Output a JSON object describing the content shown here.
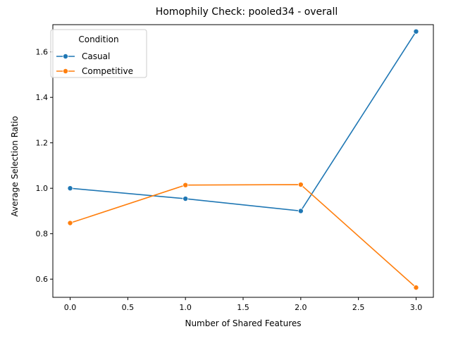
{
  "chart_data": {
    "type": "line",
    "title": "Homophily Check: pooled34 - overall",
    "xlabel": "Number of Shared Features",
    "ylabel": "Average Selection Ratio",
    "xlim": [
      -0.15,
      3.15
    ],
    "ylim": [
      0.52,
      1.72
    ],
    "xticks": [
      0.0,
      0.5,
      1.0,
      1.5,
      2.0,
      2.5,
      3.0
    ],
    "xtick_labels": [
      "0.0",
      "0.5",
      "1.0",
      "1.5",
      "2.0",
      "2.5",
      "3.0"
    ],
    "yticks": [
      0.6,
      0.8,
      1.0,
      1.2,
      1.4,
      1.6
    ],
    "ytick_labels": [
      "0.6",
      "0.8",
      "1.0",
      "1.2",
      "1.4",
      "1.6"
    ],
    "grid": false,
    "legend": {
      "title": "Condition",
      "placement": "top-left"
    },
    "x": [
      0,
      1,
      2,
      3
    ],
    "series": [
      {
        "name": "Casual",
        "color": "#1f77b4",
        "values": [
          1.0,
          0.954,
          0.9,
          1.69
        ]
      },
      {
        "name": "Competitive",
        "color": "#ff7f0e",
        "values": [
          0.847,
          1.014,
          1.016,
          0.563
        ]
      }
    ]
  }
}
